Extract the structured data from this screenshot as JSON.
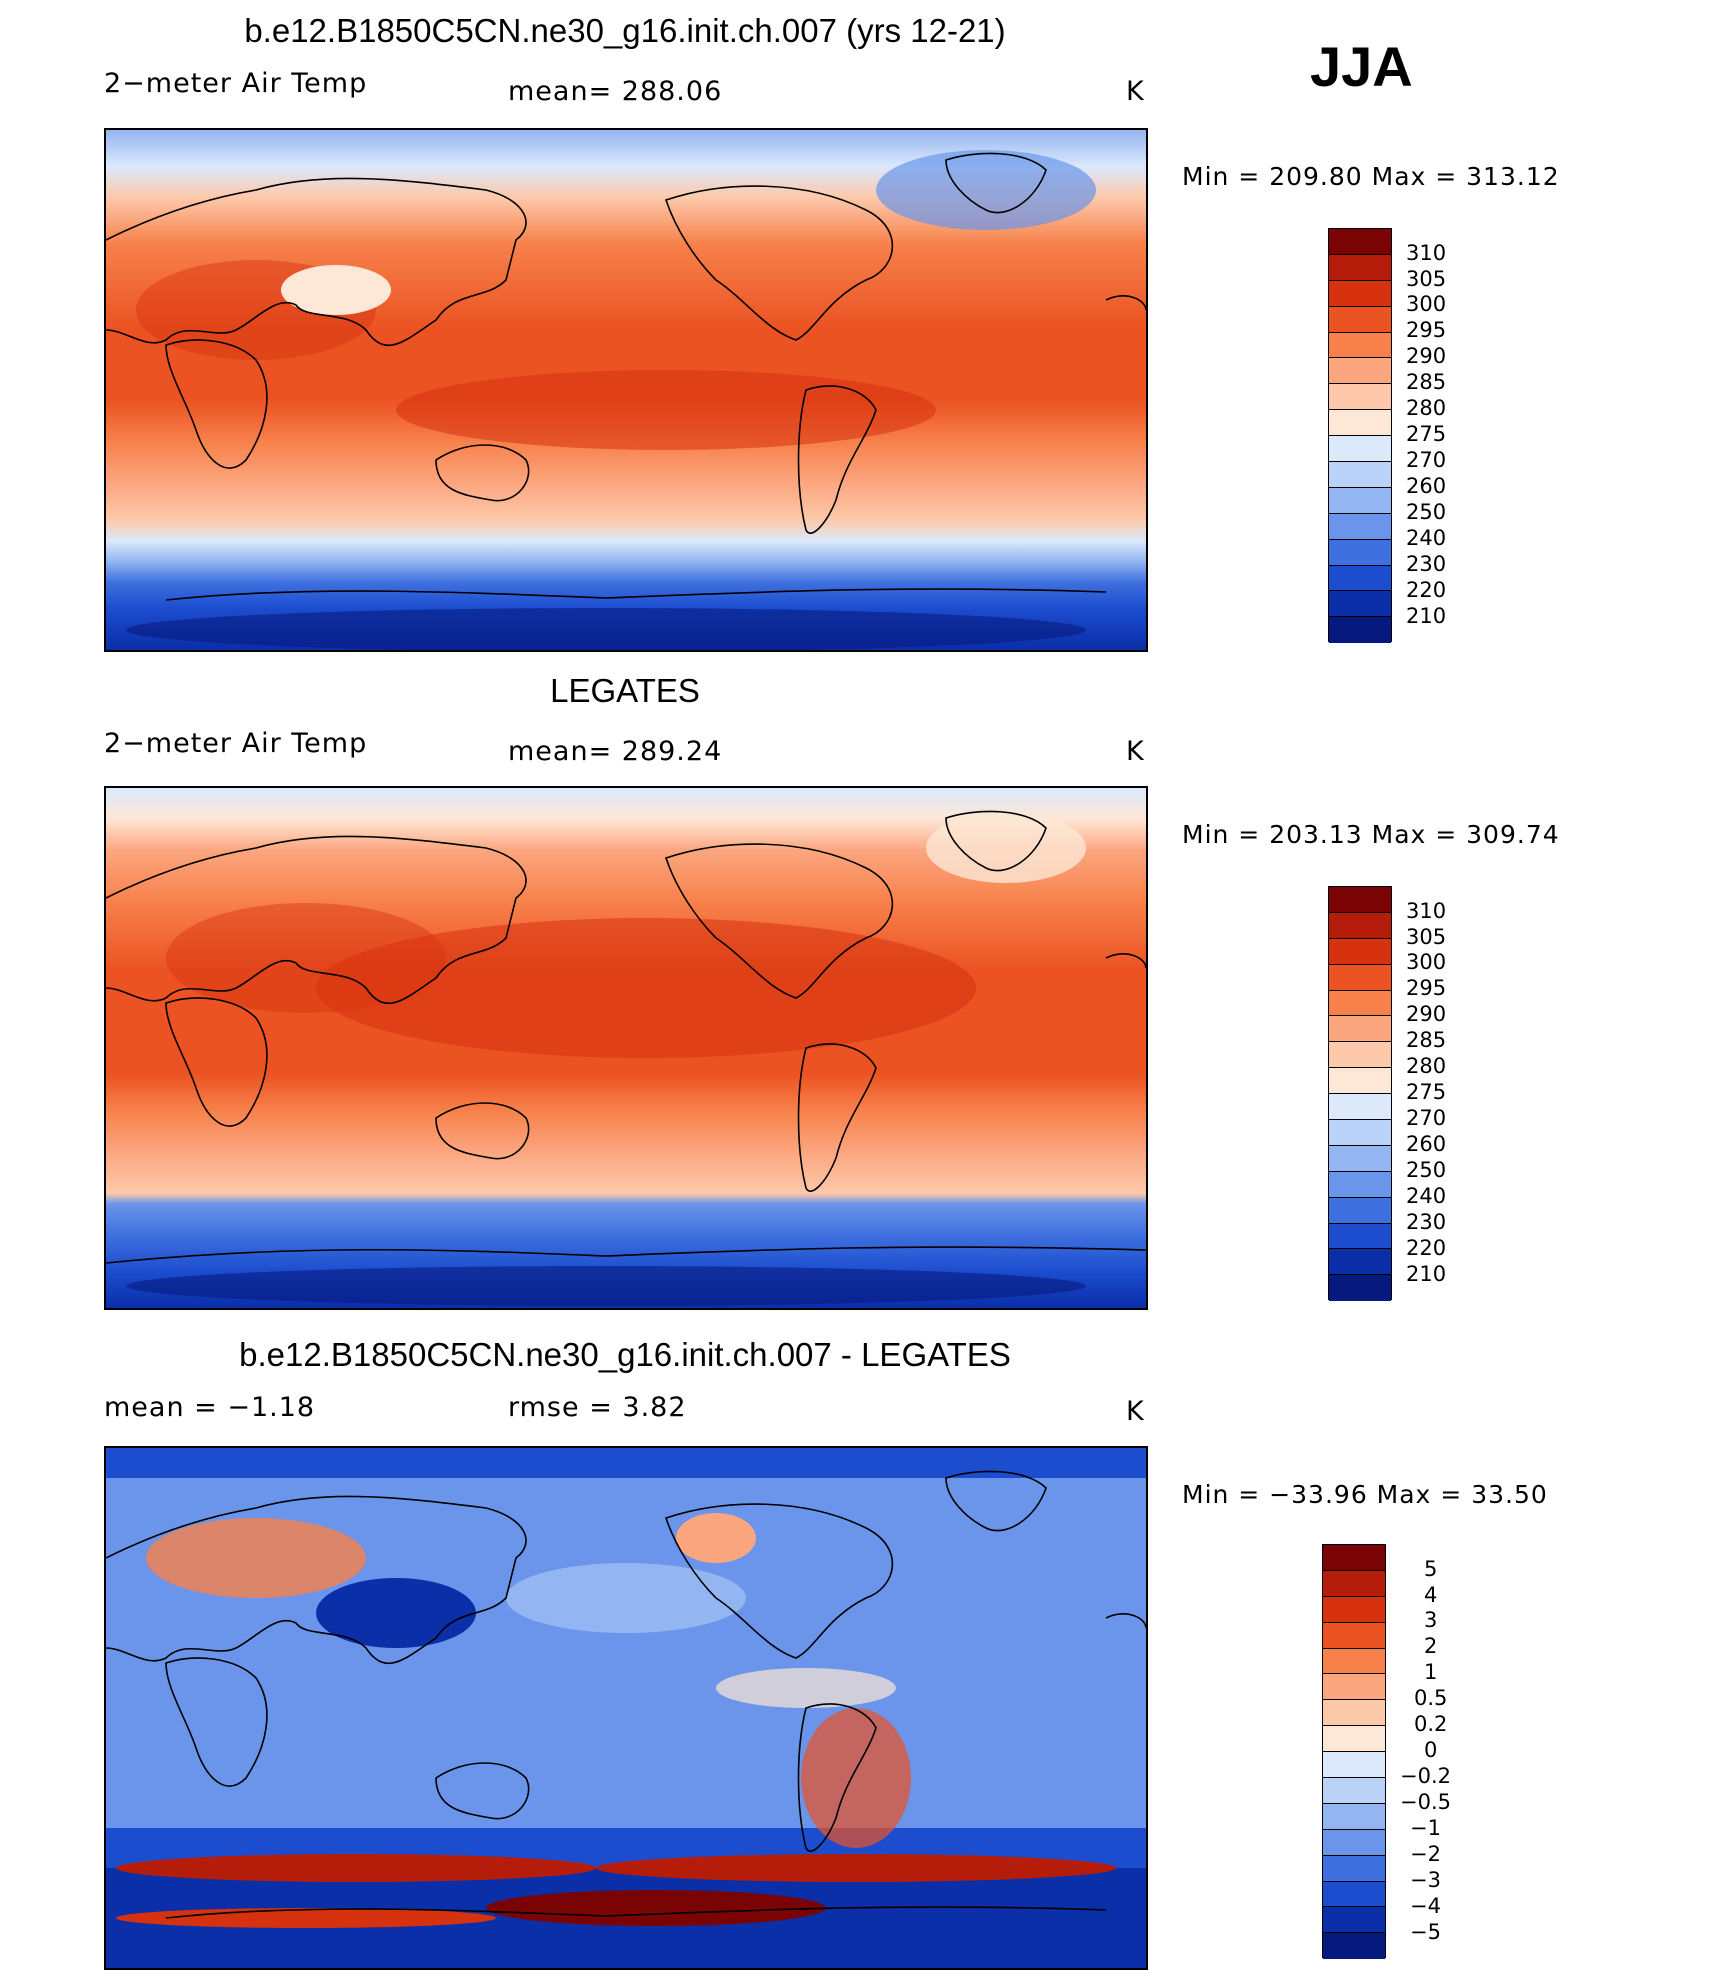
{
  "season": "JJA",
  "panels": [
    {
      "title": "b.e12.B1850C5CN.ne30_g16.init.ch.007 (yrs 12-21)",
      "left_label": "2−meter Air Temp",
      "center_label": "mean=  288.06",
      "units": "K",
      "minmax": "Min  =  209.80  Max  =  313.12",
      "map_kind": "model_temperature",
      "colorbar_labels": [
        "310",
        "305",
        "300",
        "295",
        "290",
        "285",
        "280",
        "275",
        "270",
        "260",
        "250",
        "240",
        "230",
        "220",
        "210"
      ]
    },
    {
      "title": "LEGATES",
      "left_label": "2−meter Air Temp",
      "center_label": "mean=  289.24",
      "units": "K",
      "minmax": "Min  =  203.13  Max  =  309.74",
      "map_kind": "observed_temperature",
      "colorbar_labels": [
        "310",
        "305",
        "300",
        "295",
        "290",
        "285",
        "280",
        "275",
        "270",
        "260",
        "250",
        "240",
        "230",
        "220",
        "210"
      ]
    },
    {
      "title": "b.e12.B1850C5CN.ne30_g16.init.ch.007 - LEGATES",
      "left_label": "mean  =    −1.18",
      "center_label": "rmse  =     3.82",
      "units": "K",
      "minmax": "Min  =  −33.96  Max  =    33.50",
      "map_kind": "difference",
      "colorbar_labels": [
        "5",
        "4",
        "3",
        "2",
        "1",
        "0.5",
        "0.2",
        "0",
        "−0.2",
        "−0.5",
        "−1",
        "−2",
        "−3",
        "−4",
        "−5"
      ]
    }
  ],
  "colors": {
    "temperature_scale": [
      "#7a0403",
      "#b51d0a",
      "#d7320f",
      "#eb5323",
      "#f7814b",
      "#fca67f",
      "#fdc9aa",
      "#fde7d6",
      "#dbe9fb",
      "#bad2f7",
      "#93b5f2",
      "#6a95ea",
      "#3f70df",
      "#1c4dcf",
      "#0b2ea9",
      "#061a7e"
    ],
    "difference_scale": [
      "#7a0403",
      "#b51d0a",
      "#d7320f",
      "#eb5323",
      "#f7814b",
      "#fca67f",
      "#fdc9aa",
      "#fde7d6",
      "#dbe9fb",
      "#bad2f7",
      "#93b5f2",
      "#6a95ea",
      "#3f70df",
      "#1c4dcf",
      "#0b2ea9",
      "#061a7e"
    ]
  }
}
